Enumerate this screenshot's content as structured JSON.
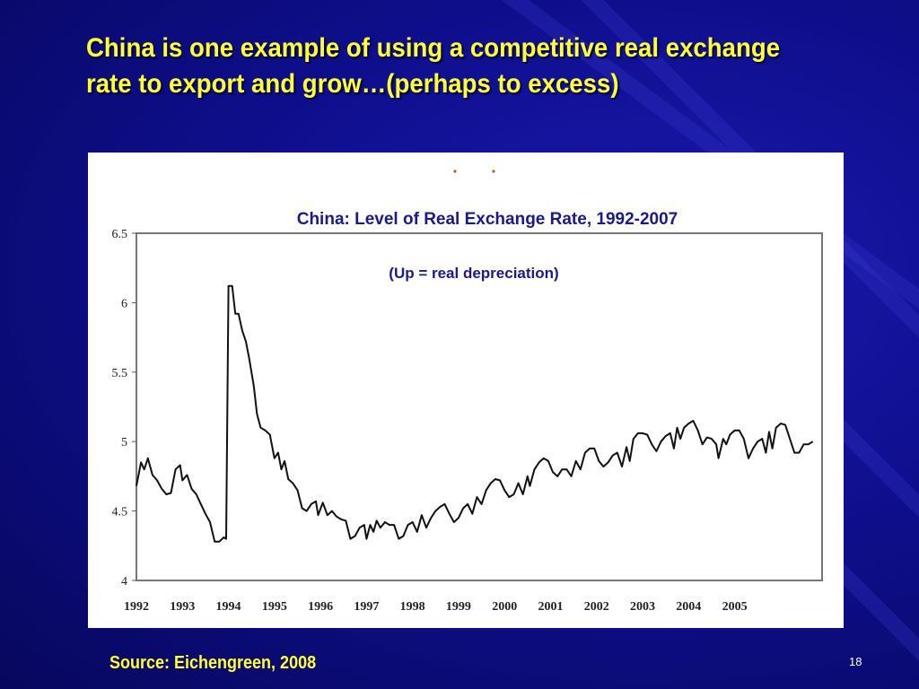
{
  "slide": {
    "title": "China  is one example of using a competitive real exchange rate to export and grow…(perhaps to excess)",
    "source": "Source: Eichengreen, 2008",
    "slide_number": "18"
  },
  "colors": {
    "background": "#0f0f8f",
    "title": "#ffff33",
    "chart_title": "#1a1a8c",
    "line": "#111111"
  },
  "chart_data": {
    "type": "line",
    "title": "China: Level of Real Exchange Rate, 1992-2007",
    "subtitle": "(Up = real depreciation)",
    "xlabel": "",
    "ylabel": "",
    "ylim": [
      4,
      6.5
    ],
    "xlim": [
      1992,
      2006.9
    ],
    "y_ticks": [
      "6.5",
      "6",
      "5.5",
      "5",
      "4.5",
      "4"
    ],
    "y_tick_values": [
      6.5,
      6,
      5.5,
      5,
      4.5,
      4
    ],
    "x_ticks": [
      "1992",
      "1993",
      "1994",
      "1995",
      "1996",
      "1997",
      "1998",
      "1999",
      "2000",
      "2001",
      "2002",
      "2003",
      "2004",
      "2005"
    ],
    "x_tick_values": [
      1992,
      1993,
      1994,
      1995,
      1996,
      1997,
      1998,
      1999,
      2000,
      2001,
      2002,
      2003,
      2004,
      2005
    ],
    "grid": false,
    "series": [
      {
        "points": [
          [
            1992.0,
            4.68
          ],
          [
            1992.1,
            4.85
          ],
          [
            1992.17,
            4.8
          ],
          [
            1992.25,
            4.88
          ],
          [
            1992.35,
            4.76
          ],
          [
            1992.45,
            4.72
          ],
          [
            1992.55,
            4.66
          ],
          [
            1992.65,
            4.62
          ],
          [
            1992.75,
            4.63
          ],
          [
            1992.85,
            4.8
          ],
          [
            1992.95,
            4.83
          ],
          [
            1993.0,
            4.72
          ],
          [
            1993.1,
            4.76
          ],
          [
            1993.2,
            4.66
          ],
          [
            1993.3,
            4.62
          ],
          [
            1993.4,
            4.55
          ],
          [
            1993.5,
            4.48
          ],
          [
            1993.6,
            4.42
          ],
          [
            1993.7,
            4.28
          ],
          [
            1993.8,
            4.28
          ],
          [
            1993.9,
            4.31
          ],
          [
            1993.95,
            4.3
          ],
          [
            1994.0,
            6.12
          ],
          [
            1994.08,
            6.12
          ],
          [
            1994.15,
            5.92
          ],
          [
            1994.22,
            5.92
          ],
          [
            1994.3,
            5.8
          ],
          [
            1994.38,
            5.72
          ],
          [
            1994.45,
            5.6
          ],
          [
            1994.55,
            5.4
          ],
          [
            1994.62,
            5.2
          ],
          [
            1994.7,
            5.1
          ],
          [
            1994.8,
            5.08
          ],
          [
            1994.9,
            5.05
          ],
          [
            1995.0,
            4.88
          ],
          [
            1995.08,
            4.92
          ],
          [
            1995.15,
            4.8
          ],
          [
            1995.22,
            4.86
          ],
          [
            1995.3,
            4.73
          ],
          [
            1995.4,
            4.7
          ],
          [
            1995.5,
            4.65
          ],
          [
            1995.6,
            4.52
          ],
          [
            1995.7,
            4.5
          ],
          [
            1995.8,
            4.55
          ],
          [
            1995.9,
            4.57
          ],
          [
            1995.95,
            4.47
          ],
          [
            1996.05,
            4.56
          ],
          [
            1996.15,
            4.47
          ],
          [
            1996.25,
            4.5
          ],
          [
            1996.35,
            4.46
          ],
          [
            1996.45,
            4.44
          ],
          [
            1996.55,
            4.43
          ],
          [
            1996.65,
            4.3
          ],
          [
            1996.75,
            4.32
          ],
          [
            1996.85,
            4.38
          ],
          [
            1996.95,
            4.4
          ],
          [
            1997.0,
            4.3
          ],
          [
            1997.08,
            4.4
          ],
          [
            1997.15,
            4.35
          ],
          [
            1997.22,
            4.43
          ],
          [
            1997.3,
            4.38
          ],
          [
            1997.4,
            4.42
          ],
          [
            1997.5,
            4.4
          ],
          [
            1997.6,
            4.4
          ],
          [
            1997.7,
            4.3
          ],
          [
            1997.8,
            4.32
          ],
          [
            1997.9,
            4.4
          ],
          [
            1998.0,
            4.42
          ],
          [
            1998.1,
            4.35
          ],
          [
            1998.2,
            4.47
          ],
          [
            1998.3,
            4.38
          ],
          [
            1998.4,
            4.45
          ],
          [
            1998.5,
            4.5
          ],
          [
            1998.6,
            4.53
          ],
          [
            1998.7,
            4.55
          ],
          [
            1998.8,
            4.48
          ],
          [
            1998.9,
            4.42
          ],
          [
            1999.0,
            4.45
          ],
          [
            1999.1,
            4.52
          ],
          [
            1999.2,
            4.55
          ],
          [
            1999.3,
            4.48
          ],
          [
            1999.4,
            4.6
          ],
          [
            1999.5,
            4.55
          ],
          [
            1999.6,
            4.65
          ],
          [
            1999.7,
            4.7
          ],
          [
            1999.8,
            4.73
          ],
          [
            1999.9,
            4.72
          ],
          [
            2000.0,
            4.65
          ],
          [
            2000.1,
            4.6
          ],
          [
            2000.2,
            4.62
          ],
          [
            2000.3,
            4.7
          ],
          [
            2000.4,
            4.62
          ],
          [
            2000.5,
            4.75
          ],
          [
            2000.55,
            4.68
          ],
          [
            2000.65,
            4.8
          ],
          [
            2000.75,
            4.85
          ],
          [
            2000.85,
            4.88
          ],
          [
            2000.95,
            4.86
          ],
          [
            2001.05,
            4.78
          ],
          [
            2001.15,
            4.75
          ],
          [
            2001.25,
            4.8
          ],
          [
            2001.35,
            4.8
          ],
          [
            2001.45,
            4.75
          ],
          [
            2001.55,
            4.86
          ],
          [
            2001.65,
            4.8
          ],
          [
            2001.75,
            4.92
          ],
          [
            2001.85,
            4.95
          ],
          [
            2001.95,
            4.95
          ],
          [
            2002.05,
            4.86
          ],
          [
            2002.15,
            4.82
          ],
          [
            2002.25,
            4.85
          ],
          [
            2002.35,
            4.9
          ],
          [
            2002.45,
            4.92
          ],
          [
            2002.55,
            4.82
          ],
          [
            2002.65,
            4.96
          ],
          [
            2002.72,
            4.86
          ],
          [
            2002.8,
            5.02
          ],
          [
            2002.9,
            5.06
          ],
          [
            2003.0,
            5.06
          ],
          [
            2003.1,
            5.05
          ],
          [
            2003.2,
            4.98
          ],
          [
            2003.3,
            4.93
          ],
          [
            2003.4,
            5.0
          ],
          [
            2003.5,
            5.04
          ],
          [
            2003.6,
            5.06
          ],
          [
            2003.68,
            4.95
          ],
          [
            2003.75,
            5.1
          ],
          [
            2003.82,
            5.02
          ],
          [
            2003.9,
            5.1
          ],
          [
            2004.0,
            5.13
          ],
          [
            2004.1,
            5.15
          ],
          [
            2004.2,
            5.08
          ],
          [
            2004.3,
            4.98
          ],
          [
            2004.4,
            5.03
          ],
          [
            2004.5,
            5.02
          ],
          [
            2004.6,
            4.98
          ],
          [
            2004.65,
            4.88
          ],
          [
            2004.75,
            5.02
          ],
          [
            2004.82,
            4.98
          ],
          [
            2004.9,
            5.05
          ],
          [
            2005.0,
            5.08
          ],
          [
            2005.1,
            5.08
          ],
          [
            2005.2,
            5.02
          ],
          [
            2005.3,
            4.88
          ],
          [
            2005.4,
            4.95
          ],
          [
            2005.5,
            5.0
          ],
          [
            2005.6,
            5.02
          ],
          [
            2005.68,
            4.92
          ],
          [
            2005.75,
            5.07
          ],
          [
            2005.82,
            4.95
          ],
          [
            2005.9,
            5.1
          ],
          [
            2006.0,
            5.13
          ],
          [
            2006.1,
            5.12
          ],
          [
            2006.2,
            5.02
          ],
          [
            2006.3,
            4.92
          ],
          [
            2006.4,
            4.92
          ],
          [
            2006.5,
            4.98
          ],
          [
            2006.6,
            4.98
          ],
          [
            2006.7,
            5.0
          ]
        ]
      }
    ]
  }
}
